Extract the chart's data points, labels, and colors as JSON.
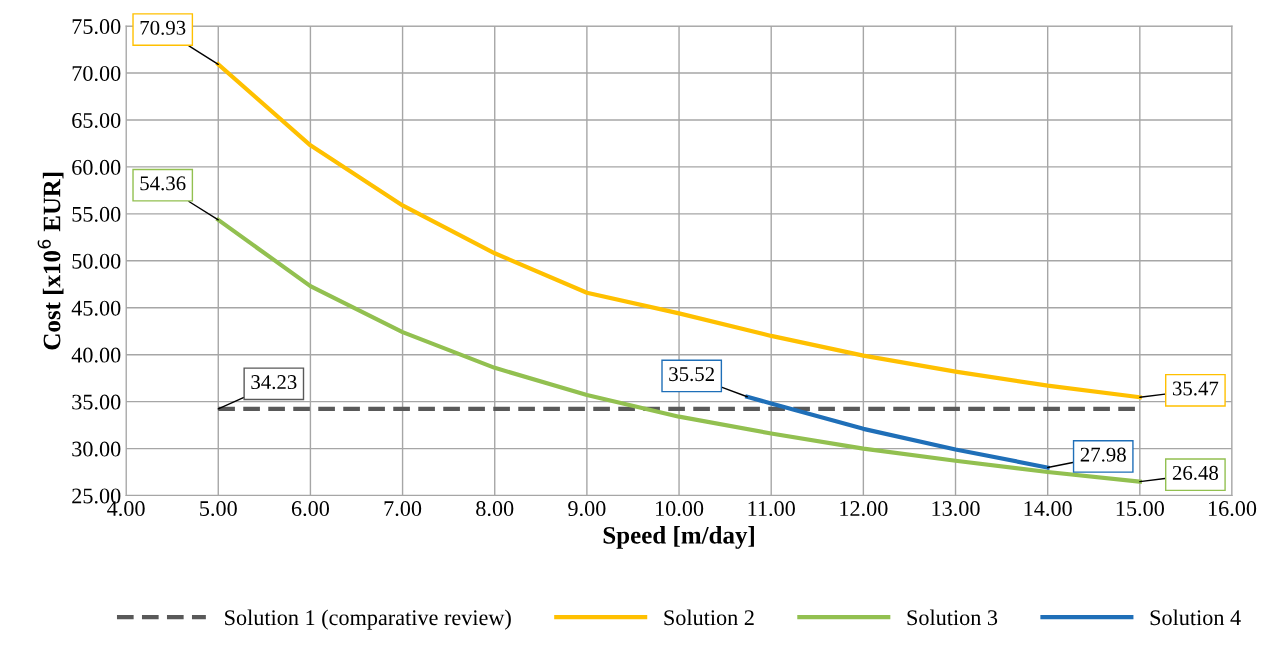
{
  "chart_data": {
    "type": "line",
    "xlabel": "Speed [m/day]",
    "ylabel": "Cost [x10$^{6}$ EUR]",
    "xlim": [
      4,
      16
    ],
    "ylim": [
      25,
      75
    ],
    "xticks": [
      {
        "value": 4,
        "label": "4.00"
      },
      {
        "value": 5,
        "label": "5.00"
      },
      {
        "value": 6,
        "label": "6.00"
      },
      {
        "value": 7,
        "label": "7.00"
      },
      {
        "value": 8,
        "label": "8.00"
      },
      {
        "value": 9,
        "label": "9.00"
      },
      {
        "value": 10,
        "label": "10.00"
      },
      {
        "value": 11,
        "label": "11.00"
      },
      {
        "value": 12,
        "label": "12.00"
      },
      {
        "value": 13,
        "label": "13.00"
      },
      {
        "value": 14,
        "label": "14.00"
      },
      {
        "value": 15,
        "label": "15.00"
      },
      {
        "value": 16,
        "label": "16.00"
      }
    ],
    "yticks": [
      {
        "value": 25,
        "label": "25.00"
      },
      {
        "value": 30,
        "label": "30.00"
      },
      {
        "value": 35,
        "label": "35.00"
      },
      {
        "value": 40,
        "label": "40.00"
      },
      {
        "value": 45,
        "label": "45.00"
      },
      {
        "value": 50,
        "label": "50.00"
      },
      {
        "value": 55,
        "label": "55.00"
      },
      {
        "value": 60,
        "label": "60.00"
      },
      {
        "value": 65,
        "label": "65.00"
      },
      {
        "value": 70,
        "label": "70.00"
      },
      {
        "value": 75,
        "label": "75.00"
      }
    ],
    "grid": true,
    "legend": "bottom",
    "marker": "none",
    "series": [
      {
        "name": "Solution 1 (comparative review)",
        "color": "#595959",
        "line_style": "dashed",
        "x": [
          5,
          15
        ],
        "values": [
          34.23,
          34.23
        ],
        "value_labels": [
          "34.23",
          null
        ]
      },
      {
        "name": "Solution 2",
        "color": "#ffc000",
        "line_style": "solid",
        "x": [
          5,
          6,
          7,
          8,
          9,
          10,
          11,
          12,
          13,
          14,
          15
        ],
        "values": [
          70.93,
          62.3,
          55.9,
          50.8,
          46.6,
          44.4,
          42.0,
          39.9,
          38.2,
          36.7,
          35.47
        ],
        "value_labels": [
          "70.93",
          null,
          null,
          null,
          null,
          null,
          null,
          null,
          null,
          null,
          "35.47"
        ]
      },
      {
        "name": "Solution 3",
        "color": "#92c050",
        "line_style": "solid",
        "x": [
          5,
          6,
          7,
          8,
          9,
          10,
          11,
          12,
          13,
          14,
          15
        ],
        "values": [
          54.36,
          47.3,
          42.4,
          38.6,
          35.7,
          33.4,
          31.6,
          30.0,
          28.7,
          27.5,
          26.48
        ],
        "value_labels": [
          "54.36",
          null,
          null,
          null,
          null,
          null,
          null,
          null,
          null,
          null,
          "26.48"
        ]
      },
      {
        "name": "Solution 4",
        "color": "#1f6fb8",
        "line_style": "solid",
        "x": [
          10.74,
          11,
          12,
          13,
          14
        ],
        "values": [
          35.52,
          34.8,
          32.1,
          29.9,
          27.98
        ],
        "value_labels": [
          "35.52",
          null,
          null,
          null,
          "27.98"
        ]
      }
    ]
  }
}
